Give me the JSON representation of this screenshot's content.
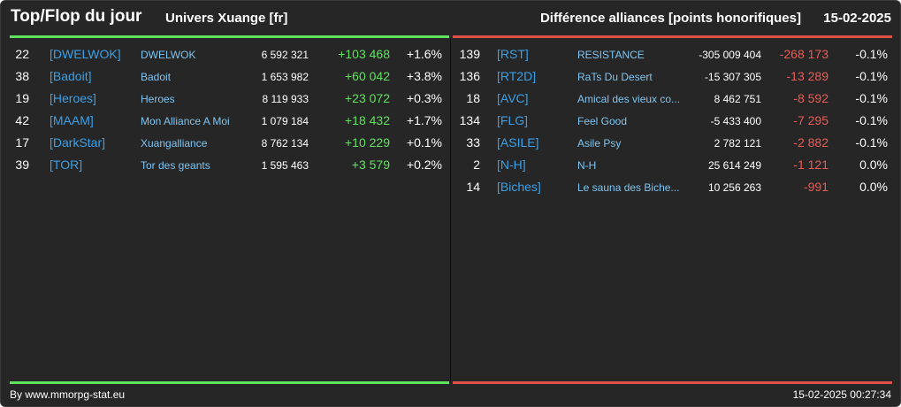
{
  "header": {
    "title": "Top/Flop du jour",
    "universe": "Univers Xuange [fr]",
    "subtitle": "Différence alliances [points honorifiques]",
    "date": "15-02-2025"
  },
  "colors": {
    "background": "#262626",
    "top_bar": "#5fe35f",
    "flop_bar": "#e0504a",
    "positive": "#5fe35f",
    "negative": "#ec5a55",
    "tag": "#3aa0e8",
    "name": "#7fc4f0"
  },
  "top": [
    {
      "rank": "22",
      "tag": "[DWELWOK]",
      "name": "DWELWOK",
      "points": "6 592 321",
      "diff": "+103 468",
      "pct": "+1.6%"
    },
    {
      "rank": "38",
      "tag": "[Badoit]",
      "name": "Badoit",
      "points": "1 653 982",
      "diff": "+60 042",
      "pct": "+3.8%"
    },
    {
      "rank": "19",
      "tag": "[Heroes]",
      "name": "Heroes",
      "points": "8 119 933",
      "diff": "+23 072",
      "pct": "+0.3%"
    },
    {
      "rank": "42",
      "tag": "[MAAM]",
      "name": "Mon Alliance A Moi",
      "points": "1 079 184",
      "diff": "+18 432",
      "pct": "+1.7%"
    },
    {
      "rank": "17",
      "tag": "[DarkStar]",
      "name": "Xuangalliance",
      "points": "8 762 134",
      "diff": "+10 229",
      "pct": "+0.1%"
    },
    {
      "rank": "39",
      "tag": "[TOR]",
      "name": "Tor des geants",
      "points": "1 595 463",
      "diff": "+3 579",
      "pct": "+0.2%"
    }
  ],
  "flop": [
    {
      "rank": "139",
      "tag": "[RST]",
      "name": "RESISTANCE",
      "points": "-305 009 404",
      "diff": "-268 173",
      "pct": "-0.1%"
    },
    {
      "rank": "136",
      "tag": "[RT2D]",
      "name": "RaTs Du Desert",
      "points": "-15 307 305",
      "diff": "-13 289",
      "pct": "-0.1%"
    },
    {
      "rank": "18",
      "tag": "[AVC]",
      "name": "Amical des vieux co...",
      "points": "8 462 751",
      "diff": "-8 592",
      "pct": "-0.1%"
    },
    {
      "rank": "134",
      "tag": "[FLG]",
      "name": "Feel Good",
      "points": "-5 433 400",
      "diff": "-7 295",
      "pct": "-0.1%"
    },
    {
      "rank": "33",
      "tag": "[ASILE]",
      "name": "Asile Psy",
      "points": "2 782 121",
      "diff": "-2 882",
      "pct": "-0.1%"
    },
    {
      "rank": "2",
      "tag": "[N-H]",
      "name": "N-H",
      "points": "25 614 249",
      "diff": "-1 121",
      "pct": "0.0%"
    },
    {
      "rank": "14",
      "tag": "[Biches]",
      "name": "Le sauna des Biche...",
      "points": "10 256 263",
      "diff": "-991",
      "pct": "0.0%"
    }
  ],
  "footer": {
    "source": "By www.mmorpg-stat.eu",
    "timestamp": "15-02-2025 00:27:34"
  }
}
